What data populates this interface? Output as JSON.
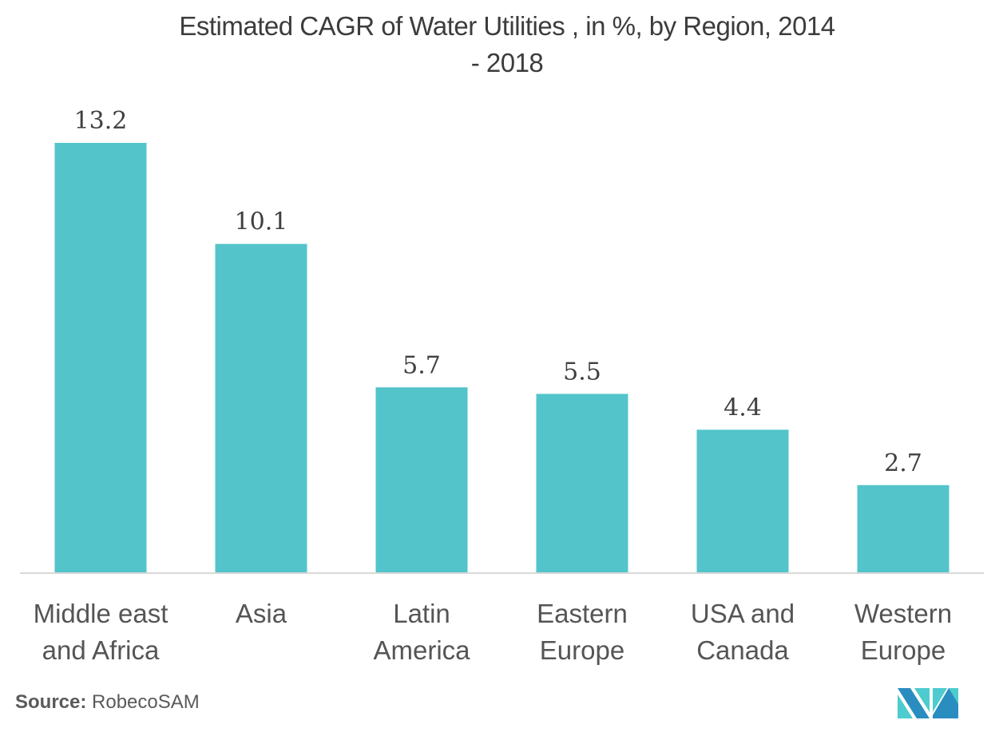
{
  "chart_data": {
    "type": "bar",
    "title": "Estimated CAGR of Water Utilities , in %, by Region, 2014 - 2018",
    "title_lines": [
      "Estimated CAGR of Water Utilities , in %, by Region, 2014",
      "- 2018"
    ],
    "categories": [
      "Middle east and Africa",
      "Asia",
      "Latin America",
      "Eastern Europe",
      "USA and Canada",
      "Western Europe"
    ],
    "category_lines": [
      [
        "Middle east",
        "and Africa"
      ],
      [
        "Asia"
      ],
      [
        "Latin",
        "America"
      ],
      [
        "Eastern",
        "Europe"
      ],
      [
        "USA and",
        "Canada"
      ],
      [
        "Western",
        "Europe"
      ]
    ],
    "values": [
      13.2,
      10.1,
      5.7,
      5.5,
      4.4,
      2.7
    ],
    "value_labels": [
      "13.2",
      "10.1",
      "5.7",
      "5.5",
      "4.4",
      "2.7"
    ],
    "xlabel": "",
    "ylabel": "",
    "ylim": [
      0,
      13.2
    ],
    "grid": false,
    "legend": "none",
    "bar_color": "#52c4ca"
  },
  "source": {
    "label": "Source:",
    "text": "RobecoSAM"
  },
  "logo": {
    "name": "mordor-intelligence-logo",
    "colors": [
      "#2a8dc0",
      "#4dcbcf"
    ]
  }
}
